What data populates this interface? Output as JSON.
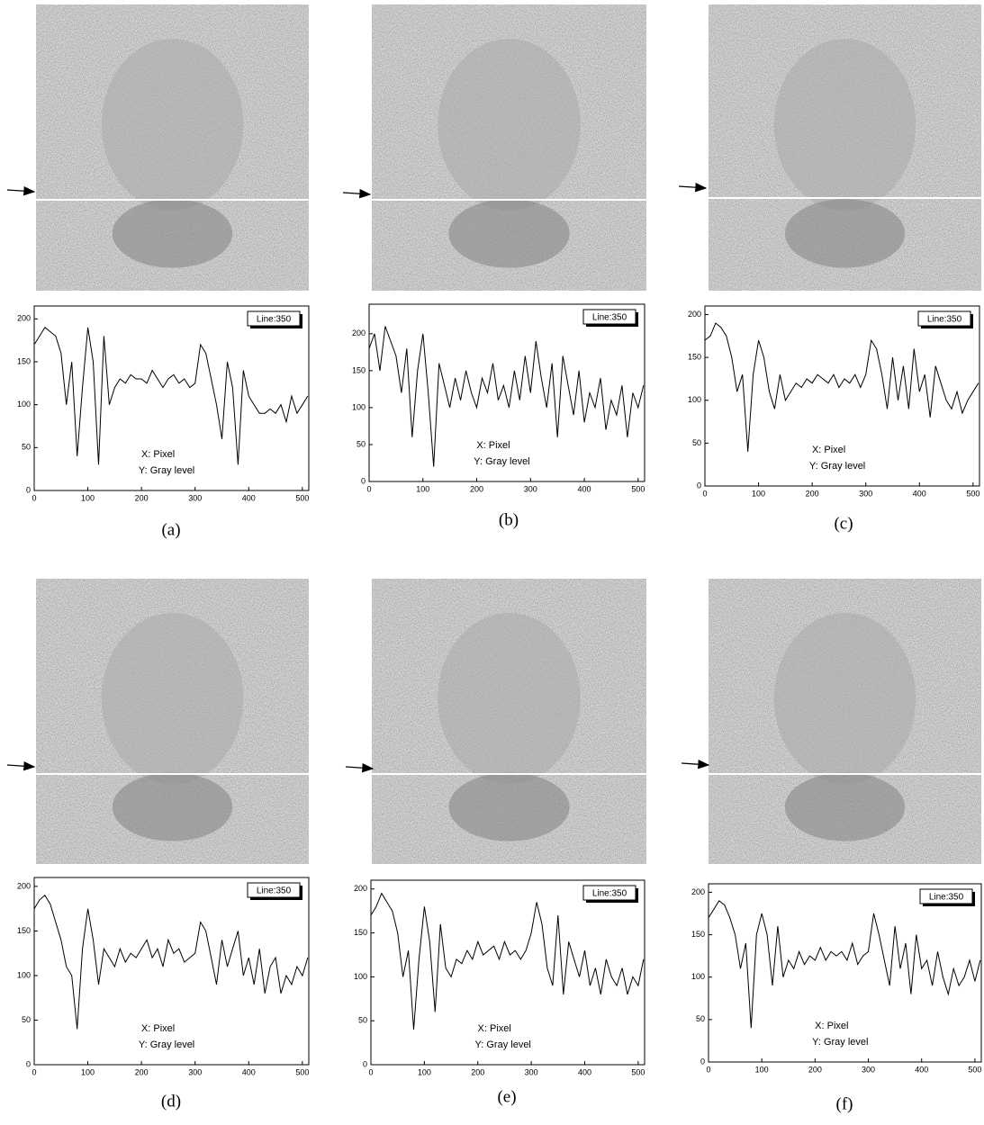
{
  "chart_data": [
    {
      "type": "line",
      "caption": "(a)",
      "annotations": [
        "X: Pixel",
        "Y: Gray level"
      ],
      "x": [
        0,
        10,
        20,
        30,
        40,
        50,
        60,
        70,
        80,
        90,
        100,
        110,
        120,
        130,
        140,
        150,
        160,
        170,
        180,
        190,
        200,
        210,
        220,
        230,
        240,
        250,
        260,
        270,
        280,
        290,
        300,
        310,
        320,
        330,
        340,
        350,
        360,
        370,
        380,
        390,
        400,
        410,
        420,
        430,
        440,
        450,
        460,
        470,
        480,
        490,
        500,
        510
      ],
      "xlim": [
        0,
        512
      ],
      "xticks": [
        0,
        100,
        200,
        300,
        400,
        500
      ],
      "ylim": [
        0,
        215
      ],
      "yticks": [
        0,
        50,
        100,
        150,
        200
      ],
      "series": [
        {
          "name": "Line:350",
          "color": "#000000",
          "values": [
            170,
            180,
            190,
            185,
            180,
            160,
            100,
            150,
            40,
            120,
            190,
            150,
            30,
            180,
            100,
            120,
            130,
            125,
            135,
            130,
            130,
            125,
            140,
            130,
            120,
            130,
            135,
            125,
            130,
            120,
            125,
            170,
            160,
            130,
            100,
            60,
            150,
            120,
            30,
            140,
            110,
            100,
            90,
            90,
            95,
            90,
            100,
            80,
            110,
            90,
            100,
            110
          ]
        }
      ]
    },
    {
      "type": "line",
      "caption": "(b)",
      "annotations": [
        "X: Pixel",
        "Y: Gray level"
      ],
      "x": [
        0,
        10,
        20,
        30,
        40,
        50,
        60,
        70,
        80,
        90,
        100,
        110,
        120,
        130,
        140,
        150,
        160,
        170,
        180,
        190,
        200,
        210,
        220,
        230,
        240,
        250,
        260,
        270,
        280,
        290,
        300,
        310,
        320,
        330,
        340,
        350,
        360,
        370,
        380,
        390,
        400,
        410,
        420,
        430,
        440,
        450,
        460,
        470,
        480,
        490,
        500,
        510
      ],
      "xlim": [
        0,
        512
      ],
      "xticks": [
        0,
        100,
        200,
        300,
        400,
        500
      ],
      "ylim": [
        0,
        240
      ],
      "yticks": [
        0,
        50,
        100,
        150,
        200
      ],
      "series": [
        {
          "name": "Line:350",
          "color": "#000000",
          "values": [
            180,
            200,
            150,
            210,
            190,
            170,
            120,
            180,
            60,
            150,
            200,
            120,
            20,
            160,
            130,
            100,
            140,
            110,
            150,
            120,
            100,
            140,
            120,
            160,
            110,
            130,
            100,
            150,
            110,
            170,
            120,
            190,
            140,
            100,
            160,
            60,
            170,
            130,
            90,
            150,
            80,
            120,
            100,
            140,
            70,
            110,
            90,
            130,
            60,
            120,
            100,
            130
          ]
        }
      ]
    },
    {
      "type": "line",
      "caption": "(c)",
      "annotations": [
        "X: Pixel",
        "Y: Gray level"
      ],
      "x": [
        0,
        10,
        20,
        30,
        40,
        50,
        60,
        70,
        80,
        90,
        100,
        110,
        120,
        130,
        140,
        150,
        160,
        170,
        180,
        190,
        200,
        210,
        220,
        230,
        240,
        250,
        260,
        270,
        280,
        290,
        300,
        310,
        320,
        330,
        340,
        350,
        360,
        370,
        380,
        390,
        400,
        410,
        420,
        430,
        440,
        450,
        460,
        470,
        480,
        490,
        500,
        510
      ],
      "xlim": [
        0,
        512
      ],
      "xticks": [
        0,
        100,
        200,
        300,
        400,
        500
      ],
      "ylim": [
        0,
        210
      ],
      "yticks": [
        0,
        50,
        100,
        150,
        200
      ],
      "series": [
        {
          "name": "Line:350",
          "color": "#000000",
          "values": [
            170,
            175,
            190,
            185,
            175,
            150,
            110,
            130,
            40,
            130,
            170,
            150,
            110,
            90,
            130,
            100,
            110,
            120,
            115,
            125,
            120,
            130,
            125,
            120,
            130,
            115,
            125,
            120,
            130,
            115,
            130,
            170,
            160,
            130,
            90,
            150,
            100,
            140,
            90,
            160,
            110,
            130,
            80,
            140,
            120,
            100,
            90,
            110,
            85,
            100,
            110,
            120
          ]
        }
      ]
    },
    {
      "type": "line",
      "caption": "(d)",
      "annotations": [
        "X: Pixel",
        "Y: Gray level"
      ],
      "x": [
        0,
        10,
        20,
        30,
        40,
        50,
        60,
        70,
        80,
        90,
        100,
        110,
        120,
        130,
        140,
        150,
        160,
        170,
        180,
        190,
        200,
        210,
        220,
        230,
        240,
        250,
        260,
        270,
        280,
        290,
        300,
        310,
        320,
        330,
        340,
        350,
        360,
        370,
        380,
        390,
        400,
        410,
        420,
        430,
        440,
        450,
        460,
        470,
        480,
        490,
        500,
        510
      ],
      "xlim": [
        0,
        512
      ],
      "xticks": [
        0,
        100,
        200,
        300,
        400,
        500
      ],
      "ylim": [
        0,
        210
      ],
      "yticks": [
        0,
        50,
        100,
        150,
        200
      ],
      "series": [
        {
          "name": "Line:350",
          "color": "#000000",
          "values": [
            175,
            185,
            190,
            180,
            160,
            140,
            110,
            100,
            40,
            130,
            175,
            140,
            90,
            130,
            120,
            110,
            130,
            115,
            125,
            120,
            130,
            140,
            120,
            130,
            110,
            140,
            125,
            130,
            115,
            120,
            125,
            160,
            150,
            120,
            90,
            140,
            110,
            130,
            150,
            100,
            120,
            90,
            130,
            80,
            110,
            120,
            80,
            100,
            90,
            110,
            100,
            120
          ]
        }
      ]
    },
    {
      "type": "line",
      "caption": "(e)",
      "annotations": [
        "X: Pixel",
        "Y: Gray level"
      ],
      "x": [
        0,
        10,
        20,
        30,
        40,
        50,
        60,
        70,
        80,
        90,
        100,
        110,
        120,
        130,
        140,
        150,
        160,
        170,
        180,
        190,
        200,
        210,
        220,
        230,
        240,
        250,
        260,
        270,
        280,
        290,
        300,
        310,
        320,
        330,
        340,
        350,
        360,
        370,
        380,
        390,
        400,
        410,
        420,
        430,
        440,
        450,
        460,
        470,
        480,
        490,
        500,
        510
      ],
      "xlim": [
        0,
        512
      ],
      "xticks": [
        0,
        100,
        200,
        300,
        400,
        500
      ],
      "ylim": [
        0,
        210
      ],
      "yticks": [
        0,
        50,
        100,
        150,
        200
      ],
      "series": [
        {
          "name": "Line:350",
          "color": "#000000",
          "values": [
            170,
            180,
            195,
            185,
            175,
            150,
            100,
            130,
            40,
            120,
            180,
            140,
            60,
            160,
            110,
            100,
            120,
            115,
            130,
            120,
            140,
            125,
            130,
            135,
            120,
            140,
            125,
            130,
            120,
            130,
            150,
            185,
            160,
            110,
            90,
            170,
            80,
            140,
            120,
            100,
            130,
            90,
            110,
            80,
            120,
            100,
            90,
            110,
            80,
            100,
            90,
            120
          ]
        }
      ]
    },
    {
      "type": "line",
      "caption": "(f)",
      "annotations": [
        "X: Pixel",
        "Y: Gray level"
      ],
      "x": [
        0,
        10,
        20,
        30,
        40,
        50,
        60,
        70,
        80,
        90,
        100,
        110,
        120,
        130,
        140,
        150,
        160,
        170,
        180,
        190,
        200,
        210,
        220,
        230,
        240,
        250,
        260,
        270,
        280,
        290,
        300,
        310,
        320,
        330,
        340,
        350,
        360,
        370,
        380,
        390,
        400,
        410,
        420,
        430,
        440,
        450,
        460,
        470,
        480,
        490,
        500,
        510
      ],
      "xlim": [
        0,
        512
      ],
      "xticks": [
        0,
        100,
        200,
        300,
        400,
        500
      ],
      "ylim": [
        0,
        210
      ],
      "yticks": [
        0,
        50,
        100,
        150,
        200
      ],
      "series": [
        {
          "name": "Line:350",
          "color": "#000000",
          "values": [
            170,
            180,
            190,
            185,
            170,
            150,
            110,
            140,
            40,
            150,
            175,
            150,
            90,
            160,
            100,
            120,
            110,
            130,
            115,
            125,
            120,
            135,
            120,
            130,
            125,
            130,
            120,
            140,
            115,
            125,
            130,
            175,
            150,
            120,
            90,
            160,
            110,
            140,
            80,
            150,
            110,
            120,
            90,
            130,
            100,
            80,
            110,
            90,
            100,
            120,
            95,
            120
          ]
        }
      ]
    }
  ]
}
